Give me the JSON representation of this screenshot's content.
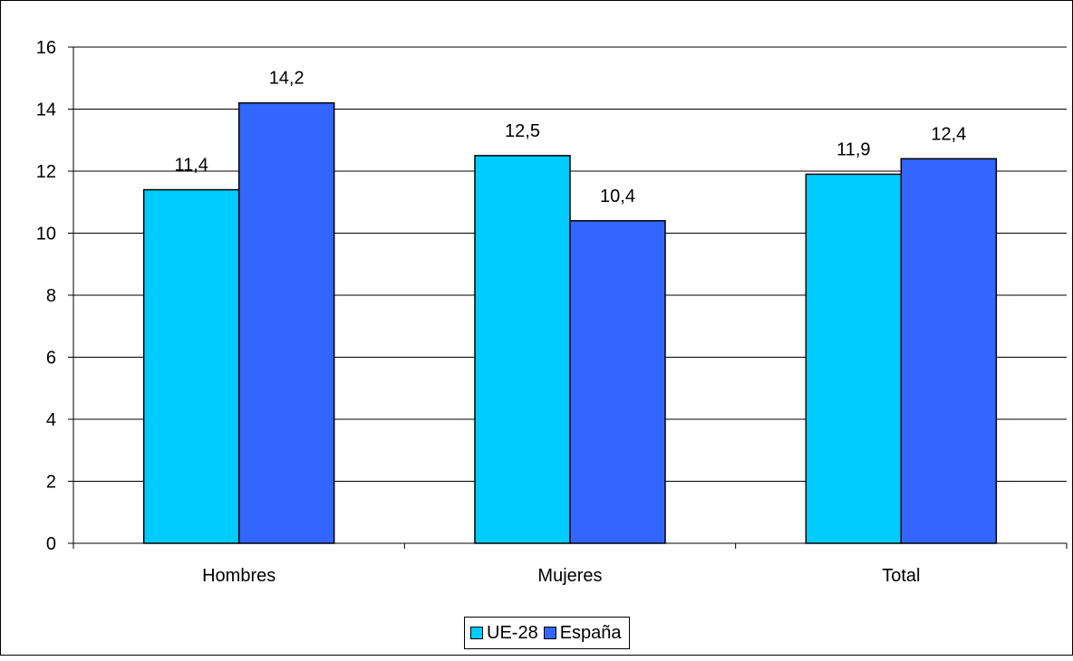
{
  "chart_data": {
    "type": "bar",
    "title": "",
    "xlabel": "",
    "ylabel": "",
    "categories": [
      "Hombres",
      "Mujeres",
      "Total"
    ],
    "series": [
      {
        "name": "UE-28",
        "values": [
          11.4,
          12.5,
          11.9
        ],
        "labels": [
          "11,4",
          "12,5",
          "11,9"
        ],
        "color": "#00CCFF"
      },
      {
        "name": "España",
        "values": [
          14.2,
          10.4,
          12.4
        ],
        "labels": [
          "14,2",
          "10,4",
          "12,4"
        ],
        "color": "#3366FF"
      }
    ],
    "ylim": [
      0,
      16
    ],
    "yticks": [
      0,
      2,
      4,
      6,
      8,
      10,
      12,
      14,
      16
    ],
    "grid": true,
    "legend_position": "bottom"
  }
}
